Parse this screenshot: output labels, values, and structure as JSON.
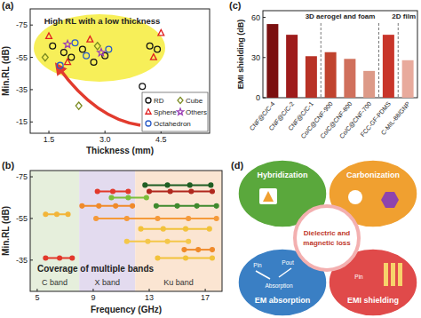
{
  "chart_data": [
    {
      "type": "scatter",
      "panel_label": "(a)",
      "annotation": "High RL with a low thickness",
      "x_label": "Thickness (mm)",
      "y_label": "Min.RL (dB)",
      "xlim": [
        1.0,
        5.8
      ],
      "ylim": [
        -8,
        -85
      ],
      "xticks": [
        1.5,
        {
          "value": 3,
          "label": "3.0"
        },
        4.5
      ],
      "yticks": [
        -75,
        -55,
        -35,
        -15
      ],
      "grid": false,
      "legend": "lower right",
      "series": [
        {
          "name": "RD",
          "color": "#111111",
          "marker": "circle",
          "x": [
            1.6,
            1.9,
            2.1,
            2.4,
            2.7,
            3.0,
            4.0,
            4.2,
            4.4
          ],
          "values": [
            -62,
            -58,
            -55,
            -60,
            -52,
            -56,
            -37,
            -62,
            -60
          ]
        },
        {
          "name": "Sphere",
          "color": "#e02020",
          "marker": "triangle",
          "x": [
            1.5,
            2.0,
            2.6,
            4.5,
            4.3
          ],
          "values": [
            -68,
            -52,
            -66,
            -70,
            -55
          ]
        },
        {
          "name": "Cube",
          "color": "#7a8a20",
          "marker": "diamond",
          "x": [
            1.4,
            2.8,
            2.3
          ],
          "values": [
            -55,
            -62,
            -25
          ]
        },
        {
          "name": "Octahedron",
          "color": "#2a5cc8",
          "marker": "circle",
          "x": [
            1.8,
            2.2,
            2.5,
            3.1
          ],
          "values": [
            -50,
            -64,
            -56,
            -60
          ]
        },
        {
          "name": "Others",
          "color": "#9b3fb5",
          "marker": "star",
          "x": [
            2.0,
            2.9
          ],
          "values": [
            -63,
            -58
          ]
        }
      ]
    },
    {
      "type": "line",
      "panel_label": "(b)",
      "annotation": "Coverage of multiple bands",
      "x_label": "Frequency (GHz)",
      "y_label": "Min.RL (dB)",
      "xlim": [
        4.5,
        18.2
      ],
      "ylim": [
        -20,
        -78
      ],
      "xticks": [
        5,
        9,
        13,
        17
      ],
      "yticks": [
        -75,
        -55,
        -35
      ],
      "grid": false,
      "marker": "circle",
      "bands": [
        {
          "label": "C band",
          "range": [
            4.5,
            8
          ],
          "color": "#e6efdc"
        },
        {
          "label": "X band",
          "range": [
            8,
            12
          ],
          "color": "#e3dbef"
        },
        {
          "label": "Ku band",
          "range": [
            12,
            18.2
          ],
          "color": "#fbe5d2"
        }
      ],
      "series": [
        {
          "color": "#f2b53a",
          "x": [
            5.6,
            6.4,
            7.2
          ],
          "values": [
            -57,
            -57,
            -57
          ]
        },
        {
          "color": "#e2392b",
          "x": [
            5.6,
            6.6,
            7.5
          ],
          "values": [
            -36,
            -36,
            -36
          ]
        },
        {
          "color": "#e2392b",
          "x": [
            9.3,
            10.4,
            11.5
          ],
          "values": [
            -68,
            -68,
            -68
          ]
        },
        {
          "color": "#7cbf3a",
          "x": [
            10.3,
            11.5,
            12.8
          ],
          "values": [
            -65,
            -65,
            -65
          ]
        },
        {
          "color": "#1f5e24",
          "x": [
            12.7,
            14.3,
            15.9,
            17.4
          ],
          "values": [
            -71,
            -71,
            -71,
            -71
          ]
        },
        {
          "color": "#b0281e",
          "x": [
            13.0,
            14.5,
            16.0,
            17.5
          ],
          "values": [
            -68,
            -68,
            -68,
            -68
          ]
        },
        {
          "color": "#3f8a2e",
          "x": [
            13.5,
            15.0,
            16.4,
            17.8
          ],
          "values": [
            -61,
            -61,
            -61,
            -61
          ]
        },
        {
          "color": "#f08a2a",
          "x": [
            8.2,
            9.4,
            10.6,
            11.8
          ],
          "values": [
            -61,
            -61,
            -61,
            -61
          ]
        },
        {
          "color": "#f59a3a",
          "x": [
            9.2,
            11.4,
            13.6,
            15.8,
            17.8
          ],
          "values": [
            -55,
            -55,
            -55,
            -55,
            -55
          ]
        },
        {
          "color": "#f2c23a",
          "x": [
            12.4,
            14.0,
            15.6,
            17.3
          ],
          "values": [
            -50,
            -50,
            -50,
            -50
          ]
        },
        {
          "color": "#f4c74a",
          "x": [
            11.4,
            12.9,
            14.3,
            15.8
          ],
          "values": [
            -44,
            -44,
            -44,
            -44
          ]
        },
        {
          "color": "#f08a2a",
          "x": [
            15.5,
            16.5,
            17.5
          ],
          "values": [
            -40,
            -40,
            -40
          ]
        },
        {
          "color": "#f2c23a",
          "x": [
            13.6,
            15.6,
            17.5
          ],
          "values": [
            -36,
            -36,
            -36
          ]
        }
      ]
    },
    {
      "type": "bar",
      "panel_label": "(c)",
      "y_label": "EMI shielding (dB)",
      "categories": [
        "CNF@C/C-4",
        "CNF@C/C-2",
        "CNF@C/C-1",
        "Co/C@CNF-900",
        "Co/C@CNF-800",
        "Co/C@CNF-700",
        "FCC-GF-PDMS",
        "C-MIL-88/GNP"
      ],
      "values": [
        55,
        47,
        31,
        34,
        29,
        20,
        47,
        28
      ],
      "colors": [
        "#7b1010",
        "#9e1c1c",
        "#b83226",
        "#c0432e",
        "#d0705c",
        "#dd9a88",
        "#c8352a",
        "#e8aa9c"
      ],
      "ylim": [
        0,
        65
      ],
      "yticks": [
        0,
        30,
        60
      ],
      "grid": false,
      "annotations": [
        "3D aerogel and foam",
        "2D film"
      ]
    }
  ],
  "diagram": {
    "panel_label": "(d)",
    "center": [
      "Dielectric and",
      "magnetic loss"
    ],
    "petals": [
      {
        "label": "Hybridization",
        "color": "#5aa83c"
      },
      {
        "label": "Carbonization",
        "color": "#f0a030"
      },
      {
        "label": "EM absorption",
        "color": "#3a7fc4",
        "notes": [
          "Pin",
          "Pout",
          "Absorption"
        ]
      },
      {
        "label": "EMI shielding",
        "color": "#e04a4a",
        "notes": [
          "Pin"
        ]
      }
    ]
  }
}
